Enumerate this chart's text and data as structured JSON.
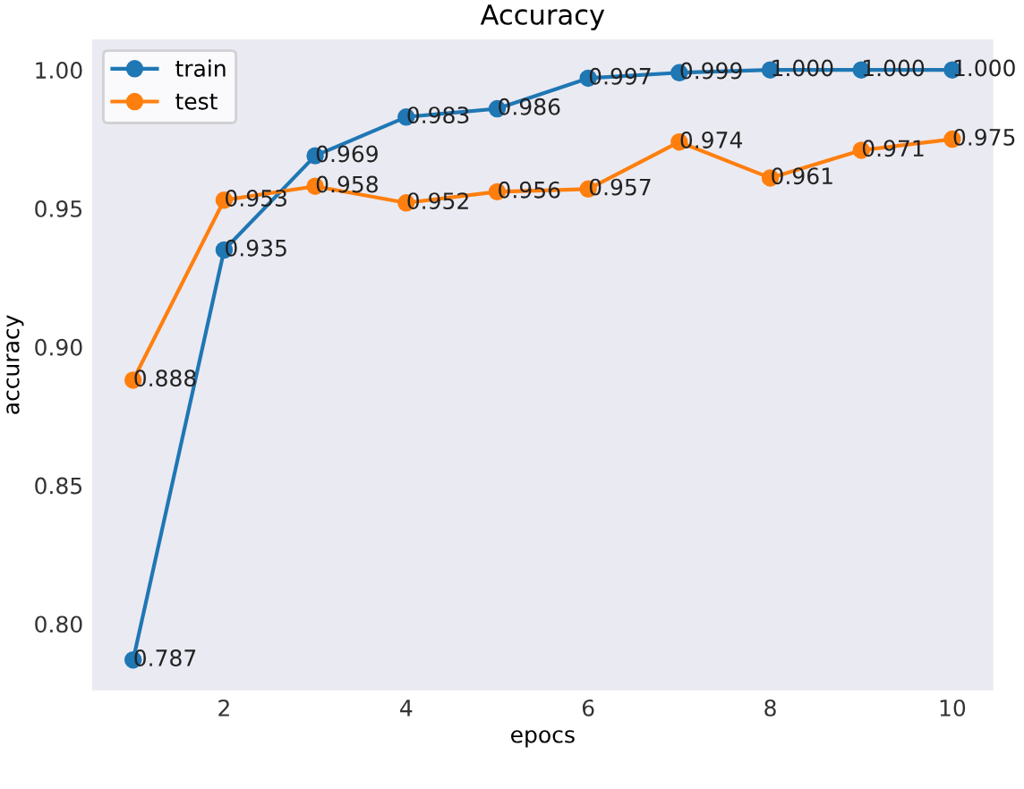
{
  "chart_data": {
    "type": "line",
    "title": "Accuracy",
    "xlabel": "epocs",
    "ylabel": "accuracy",
    "x": [
      1,
      2,
      3,
      4,
      5,
      6,
      7,
      8,
      9,
      10
    ],
    "series": [
      {
        "name": "train",
        "color": "#1f77b4",
        "values": [
          0.787,
          0.935,
          0.969,
          0.983,
          0.986,
          0.997,
          0.999,
          1.0,
          1.0,
          1.0
        ],
        "value_labels": [
          "0.787",
          "0.935",
          "0.969",
          "0.983",
          "0.986",
          "0.997",
          "0.999",
          "1.000",
          "1.000",
          "1.000"
        ]
      },
      {
        "name": "test",
        "color": "#ff7f0e",
        "values": [
          0.888,
          0.953,
          0.958,
          0.952,
          0.956,
          0.957,
          0.974,
          0.961,
          0.971,
          0.975
        ],
        "value_labels": [
          "0.888",
          "0.953",
          "0.958",
          "0.952",
          "0.956",
          "0.957",
          "0.974",
          "0.961",
          "0.971",
          "0.975"
        ]
      }
    ],
    "xlim": [
      0.55,
      10.45
    ],
    "ylim": [
      0.776,
      1.011
    ],
    "xticks": [
      2,
      4,
      6,
      8,
      10
    ],
    "yticks": [
      {
        "value": 0.8,
        "label": "0.80"
      },
      {
        "value": 0.85,
        "label": "0.85"
      },
      {
        "value": 0.9,
        "label": "0.90"
      },
      {
        "value": 0.95,
        "label": "0.95"
      },
      {
        "value": 1.0,
        "label": "1.00"
      }
    ],
    "legend": "top left",
    "marker": "circle",
    "line_style": "solid",
    "grid": false
  }
}
